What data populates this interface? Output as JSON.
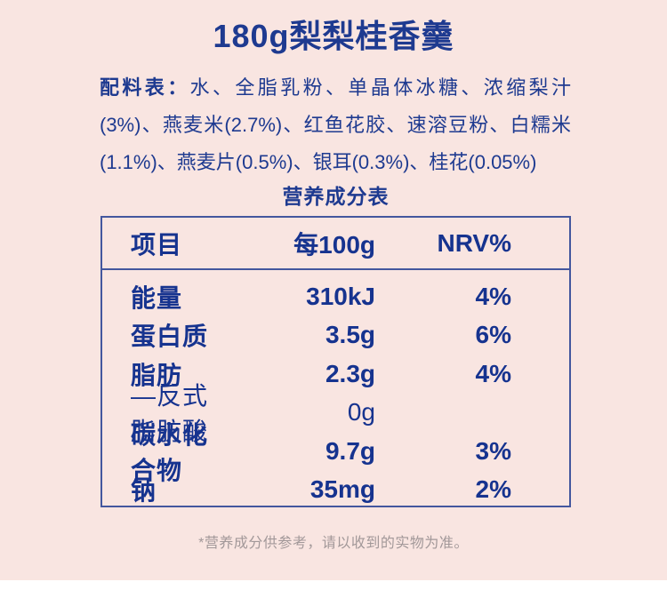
{
  "header": {
    "title": "180g梨梨桂香羹"
  },
  "ingredients": {
    "label": "配料表：",
    "text": "水、全脂乳粉、单晶体冰糖、浓缩梨汁(3%)、燕麦米(2.7%)、红鱼花胶、速溶豆粉、白糯米(1.1%)、燕麦片(0.5%)、银耳(0.3%)、桂花(0.05%)"
  },
  "nutrition": {
    "title": "营养成分表",
    "headers": [
      "项目",
      "每100g",
      "NRV%"
    ],
    "rows": [
      {
        "item": "能量",
        "per100g": "310kJ",
        "nrv": "4%"
      },
      {
        "item": "蛋白质",
        "per100g": "3.5g",
        "nrv": "6%"
      },
      {
        "item": "脂肪",
        "per100g": "2.3g",
        "nrv": "4%"
      },
      {
        "item": "—反式脂肪酸",
        "per100g": "0g",
        "nrv": ""
      },
      {
        "item": "碳水化合物",
        "per100g": "9.7g",
        "nrv": "3%"
      },
      {
        "item": "钠",
        "per100g": "35mg",
        "nrv": "2%"
      }
    ]
  },
  "footer": {
    "note": "*营养成分供参考，请以收到的实物为准。"
  },
  "colors": {
    "panel_background": "#f9e5e1",
    "text_navy": "#1e3a90",
    "table_text_navy": "#16338f",
    "table_border": "#44579e",
    "footnote_gray": "#a29899",
    "page_background": "#ffffff"
  }
}
